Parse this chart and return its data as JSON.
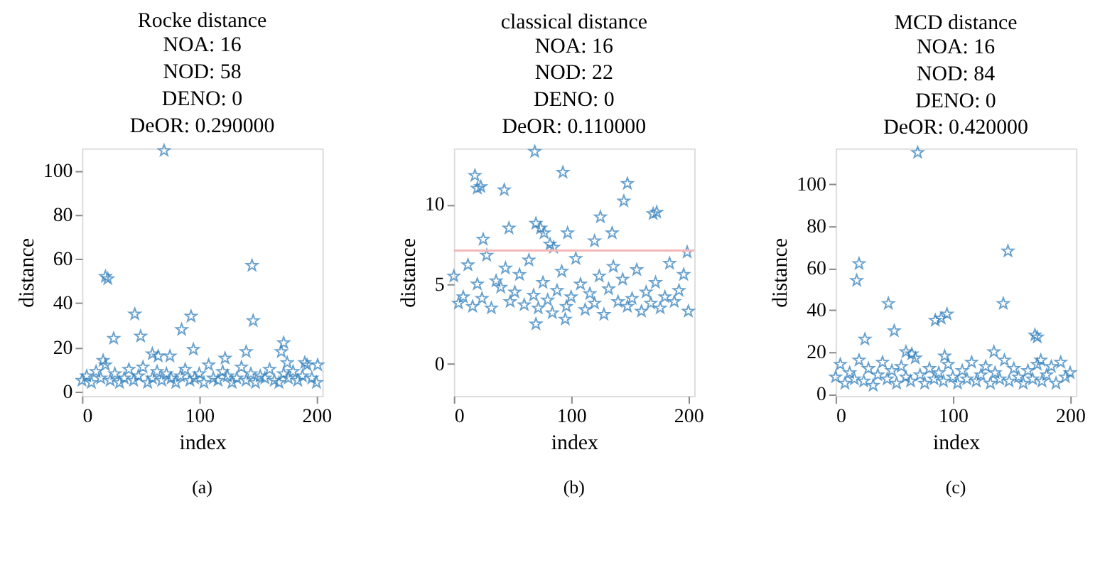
{
  "chart_data": [
    {
      "type": "scatter",
      "title": "Rocke distance",
      "subtitle": "NOA: 16\nNOD: 58\nDENO: 0\nDeOR: 0.290000",
      "xlabel": "index",
      "ylabel": "distance",
      "annotations": [
        "(a)"
      ],
      "marker": "star",
      "grid": false,
      "xlim": [
        0,
        205
      ],
      "xticks": [
        0,
        100,
        200
      ],
      "ylim": [
        -2,
        110
      ],
      "yticks": [
        0,
        20,
        40,
        60,
        80,
        100
      ],
      "series": [
        {
          "color": "#2b7bba",
          "x": [
            0,
            4,
            8,
            12,
            16,
            20,
            24,
            28,
            32,
            36,
            40,
            44,
            48,
            52,
            56,
            60,
            64,
            68,
            72,
            76,
            80,
            84,
            88,
            92,
            96,
            100,
            104,
            108,
            112,
            116,
            120,
            124,
            128,
            132,
            136,
            140,
            144,
            148,
            152,
            156,
            160,
            164,
            168,
            172,
            176,
            180,
            184,
            188,
            192,
            196,
            200,
            20,
            22,
            27,
            45,
            50,
            70,
            85,
            93,
            95,
            145,
            146,
            140,
            172,
            170,
            175,
            60,
            65,
            75,
            18,
            122,
            190,
            201
          ],
          "values": [
            5,
            7,
            4,
            9,
            6,
            12,
            5,
            8,
            4,
            6,
            10,
            5,
            7,
            11,
            4,
            6,
            9,
            5,
            8,
            6,
            4,
            7,
            10,
            5,
            6,
            8,
            4,
            12,
            6,
            5,
            9,
            7,
            4,
            6,
            11,
            5,
            8,
            4,
            7,
            6,
            10,
            5,
            4,
            8,
            6,
            9,
            5,
            7,
            12,
            6,
            4,
            52,
            51,
            24,
            35,
            25,
            109,
            28,
            34,
            19,
            57,
            32,
            18,
            22,
            18,
            13,
            17,
            16,
            16,
            14,
            15,
            13,
            12
          ]
        }
      ]
    },
    {
      "type": "scatter",
      "title": "classical distance",
      "subtitle": "NOA: 16\nNOD: 22\nDENO: 0\nDeOR: 0.110000",
      "xlabel": "index",
      "ylabel": "distance",
      "annotations": [
        "(b)"
      ],
      "marker": "star",
      "grid": false,
      "xlim": [
        0,
        205
      ],
      "xticks": [
        0,
        100,
        200
      ],
      "ylim": [
        -2,
        13.5
      ],
      "yticks": [
        0,
        5,
        10
      ],
      "ref_lines": [
        {
          "axis": "y",
          "value": 7.1,
          "color": "#f4b6b6"
        }
      ],
      "series": [
        {
          "color": "#2b7bba",
          "x": [
            0,
            4,
            8,
            12,
            16,
            20,
            24,
            28,
            32,
            36,
            40,
            44,
            48,
            52,
            56,
            60,
            64,
            68,
            72,
            76,
            80,
            84,
            88,
            92,
            96,
            100,
            104,
            108,
            112,
            116,
            120,
            124,
            128,
            132,
            136,
            140,
            144,
            148,
            152,
            156,
            160,
            164,
            168,
            172,
            176,
            180,
            184,
            188,
            192,
            196,
            200,
            18,
            20,
            23,
            43,
            47,
            69,
            70,
            74,
            77,
            82,
            85,
            93,
            97,
            125,
            120,
            135,
            145,
            148,
            170,
            173,
            199,
            70,
            95,
            25
          ],
          "values": [
            5.5,
            3.8,
            4.2,
            6.2,
            3.6,
            5,
            4.1,
            6.8,
            3.5,
            5.2,
            4.8,
            6,
            3.9,
            4.5,
            5.6,
            3.7,
            6.5,
            4.3,
            3.5,
            5.1,
            4,
            3.2,
            4.6,
            5.8,
            3.6,
            4.2,
            6.6,
            5,
            3.4,
            4.4,
            3.8,
            5.5,
            3.1,
            4.7,
            6.1,
            3.9,
            5.3,
            3.6,
            4.1,
            5.9,
            3.3,
            4.5,
            3.8,
            5.1,
            3.5,
            4.2,
            6.3,
            3.9,
            4.6,
            5.6,
            3.3,
            11.8,
            11,
            11.1,
            10.9,
            8.5,
            13.3,
            8.8,
            8.5,
            8.2,
            7.5,
            7.3,
            12,
            8.2,
            9.2,
            7.7,
            8.2,
            10.2,
            11.3,
            9.4,
            9.5,
            7,
            2.5,
            2.8,
            7.8
          ]
        }
      ]
    },
    {
      "type": "scatter",
      "title": "MCD distance",
      "subtitle": "NOA: 16\nNOD: 84\nDENO: 0\nDeOR: 0.420000",
      "xlabel": "index",
      "ylabel": "distance",
      "annotations": [
        "(c)"
      ],
      "marker": "star",
      "grid": false,
      "xlim": [
        0,
        205
      ],
      "xticks": [
        0,
        100,
        200
      ],
      "ylim": [
        -1,
        117
      ],
      "yticks": [
        0,
        20,
        40,
        60,
        80,
        100
      ],
      "series": [
        {
          "color": "#2b7bba",
          "x": [
            0,
            4,
            8,
            12,
            16,
            20,
            24,
            28,
            32,
            36,
            40,
            44,
            48,
            52,
            56,
            60,
            64,
            68,
            72,
            76,
            80,
            84,
            88,
            92,
            96,
            100,
            104,
            108,
            112,
            116,
            120,
            124,
            128,
            132,
            136,
            140,
            144,
            148,
            152,
            156,
            160,
            164,
            168,
            172,
            176,
            180,
            184,
            188,
            192,
            196,
            200,
            18,
            20,
            25,
            45,
            50,
            70,
            85,
            90,
            95,
            143,
            147,
            170,
            172,
            175,
            135,
            60,
            65,
            93
          ],
          "values": [
            8,
            14,
            5,
            10,
            7,
            16,
            6,
            12,
            4,
            9,
            15,
            7,
            11,
            5,
            13,
            8,
            6,
            17,
            9,
            5,
            12,
            7,
            10,
            6,
            14,
            8,
            5,
            11,
            7,
            15,
            6,
            9,
            13,
            5,
            10,
            7,
            16,
            6,
            12,
            8,
            5,
            11,
            7,
            14,
            6,
            9,
            13,
            5,
            15,
            8,
            10,
            54,
            62,
            26,
            43,
            30,
            115,
            35,
            36,
            38,
            43,
            68,
            28,
            27,
            16,
            20,
            20,
            19,
            18
          ]
        }
      ]
    }
  ]
}
